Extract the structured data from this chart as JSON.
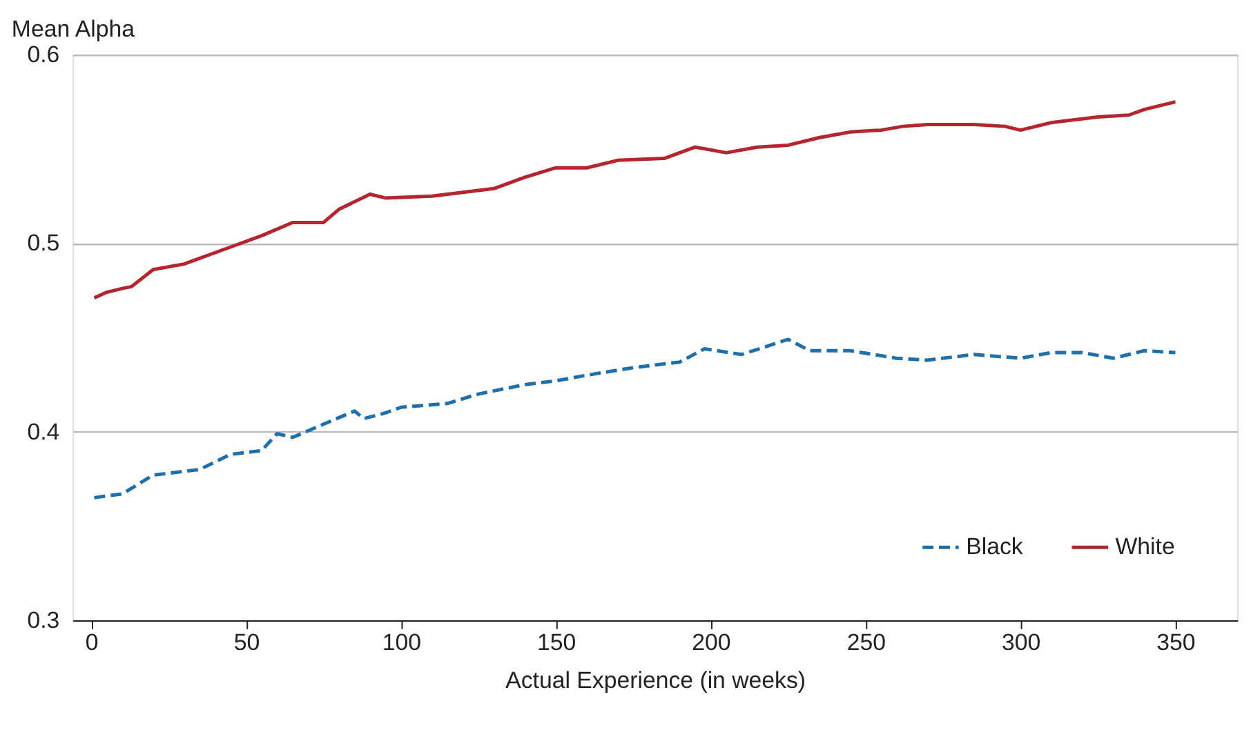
{
  "chart_data": {
    "type": "line",
    "xlabel": "Actual Experience (in weeks)",
    "ylabel": "Mean Alpha",
    "xlim": [
      -6,
      370
    ],
    "xticks": [
      0,
      50,
      100,
      150,
      200,
      250,
      300,
      350
    ],
    "ylim": [
      0.3,
      0.6
    ],
    "yticks": [
      0.3,
      0.4,
      0.5,
      0.6
    ],
    "grid": "y",
    "legend": "bottom right",
    "marker": "none",
    "series": [
      {
        "name": "Black",
        "color": "#1f6fa8",
        "line_style": "dashed",
        "x": [
          1,
          5,
          10,
          20,
          30,
          35,
          45,
          55,
          60,
          65,
          75,
          85,
          88,
          95,
          100,
          115,
          125,
          140,
          150,
          160,
          175,
          190,
          198,
          210,
          225,
          232,
          245,
          260,
          270,
          285,
          300,
          310,
          320,
          330,
          340,
          350
        ],
        "values": [
          0.365,
          0.366,
          0.367,
          0.377,
          0.379,
          0.38,
          0.388,
          0.39,
          0.399,
          0.397,
          0.404,
          0.411,
          0.407,
          0.41,
          0.413,
          0.415,
          0.42,
          0.425,
          0.427,
          0.43,
          0.434,
          0.437,
          0.444,
          0.441,
          0.449,
          0.443,
          0.443,
          0.439,
          0.438,
          0.441,
          0.439,
          0.442,
          0.442,
          0.439,
          0.443,
          0.442
        ]
      },
      {
        "name": "White",
        "color": "#b5252e",
        "line_style": "solid",
        "x": [
          1,
          5,
          10,
          13,
          20,
          30,
          35,
          45,
          55,
          65,
          75,
          80,
          90,
          95,
          110,
          120,
          130,
          140,
          150,
          160,
          170,
          185,
          195,
          205,
          215,
          225,
          235,
          245,
          255,
          262,
          270,
          285,
          295,
          300,
          310,
          325,
          335,
          340,
          350
        ],
        "values": [
          0.471,
          0.474,
          0.476,
          0.477,
          0.486,
          0.489,
          0.492,
          0.498,
          0.504,
          0.511,
          0.511,
          0.518,
          0.526,
          0.524,
          0.525,
          0.527,
          0.529,
          0.535,
          0.54,
          0.54,
          0.544,
          0.545,
          0.551,
          0.548,
          0.551,
          0.552,
          0.556,
          0.559,
          0.56,
          0.562,
          0.563,
          0.563,
          0.562,
          0.56,
          0.564,
          0.567,
          0.568,
          0.571,
          0.575
        ]
      }
    ]
  }
}
